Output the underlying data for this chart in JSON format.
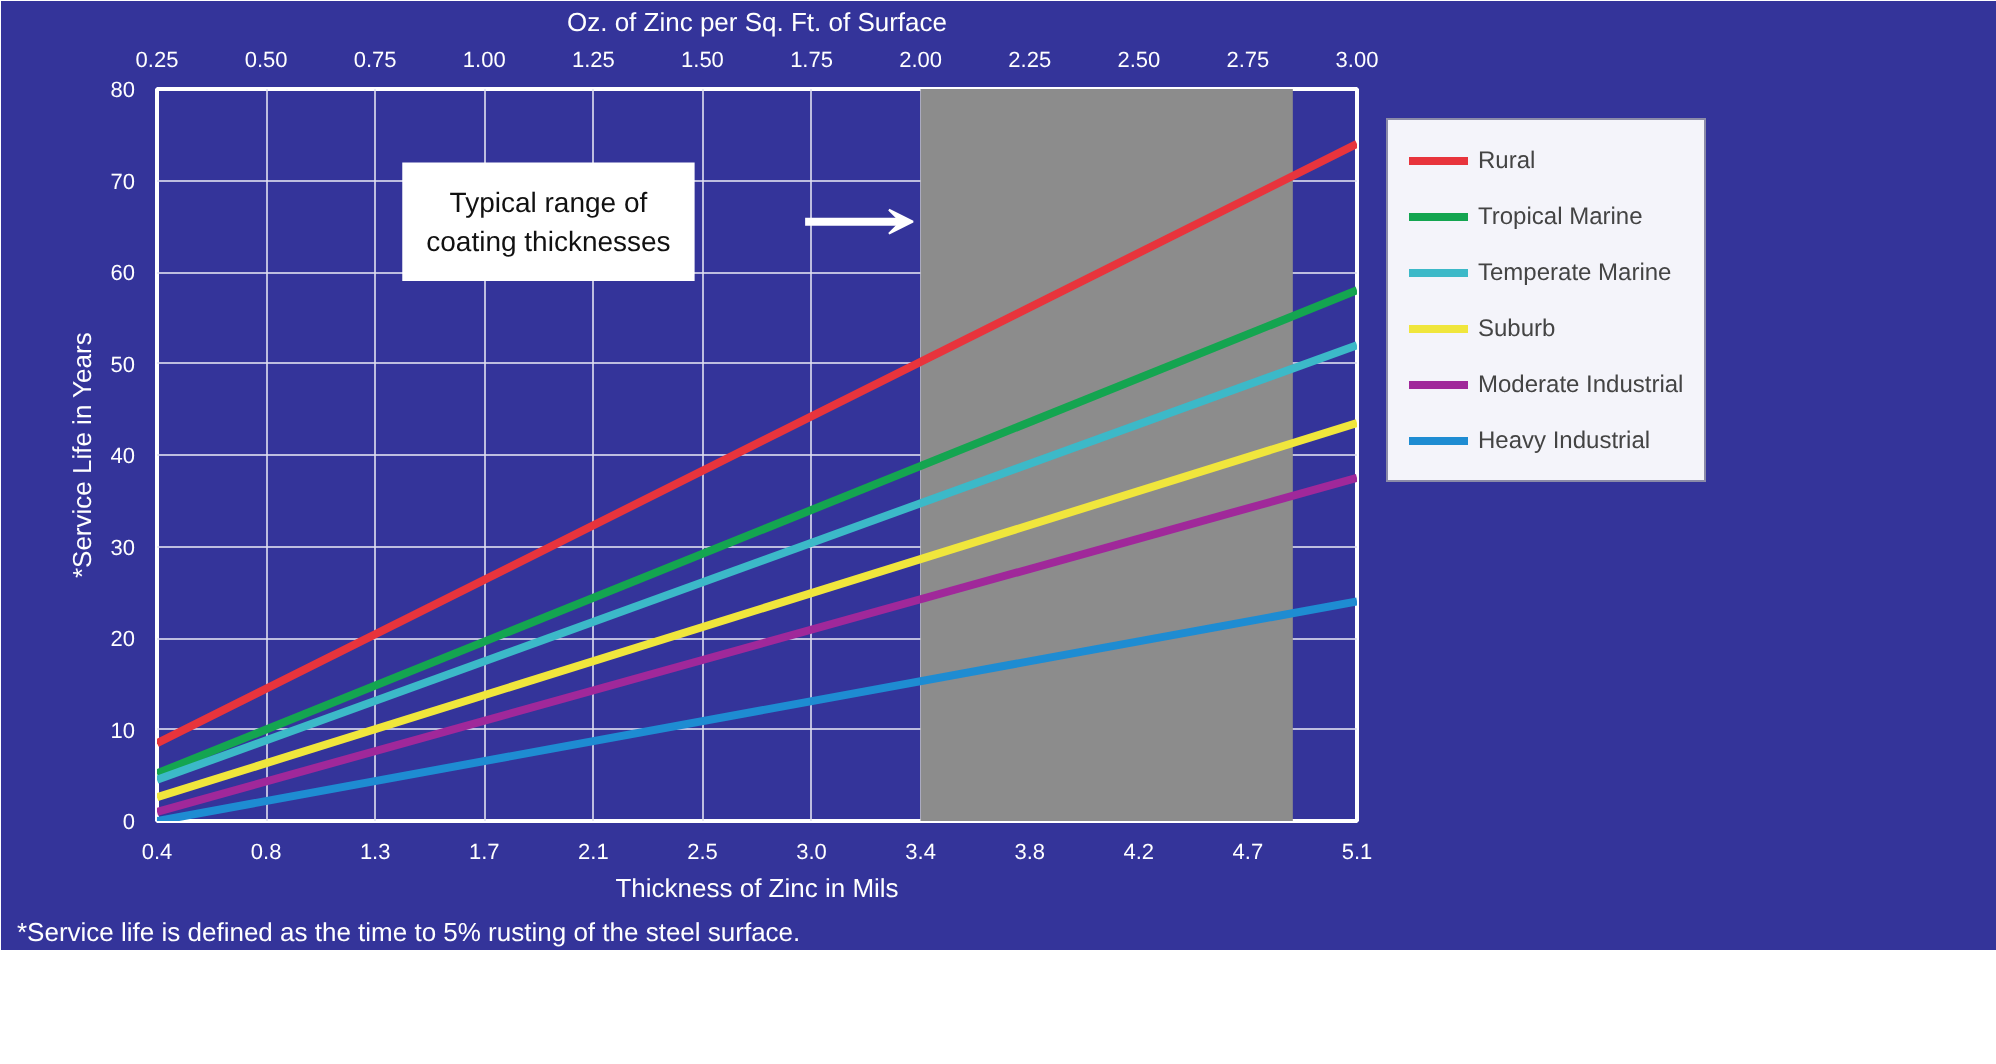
{
  "chart_data": {
    "type": "line",
    "xlabel": "Thickness of Zinc in Mils",
    "x2label": "Oz. of Zinc per Sq. Ft. of Surface",
    "ylabel": "*Service Life in Years",
    "x": [
      0.425,
      5.1
    ],
    "series": [
      {
        "name": "Rural",
        "color": "#e8343c",
        "values": [
          8.5,
          74
        ]
      },
      {
        "name": "Tropical Marine",
        "color": "#14a550",
        "values": [
          5.2,
          58
        ]
      },
      {
        "name": "Temperate Marine",
        "color": "#3cb9c8",
        "values": [
          4.5,
          52
        ]
      },
      {
        "name": "Suburb",
        "color": "#f0e63c",
        "values": [
          2.6,
          43.5
        ]
      },
      {
        "name": "Moderate Industrial",
        "color": "#a0289a",
        "values": [
          1,
          37.5
        ]
      },
      {
        "name": "Heavy Industrial",
        "color": "#1e8cd2",
        "values": [
          0,
          24
        ]
      }
    ],
    "xlim": [
      0.425,
      5.1
    ],
    "xticks": [
      {
        "value": 0.425,
        "label": "0.4"
      },
      {
        "value": 0.85,
        "label": "0.8"
      },
      {
        "value": 1.275,
        "label": "1.3"
      },
      {
        "value": 1.7,
        "label": "1.7"
      },
      {
        "value": 2.125,
        "label": "2.1"
      },
      {
        "value": 2.55,
        "label": "2.5"
      },
      {
        "value": 2.975,
        "label": "3.0"
      },
      {
        "value": 3.4,
        "label": "3.4"
      },
      {
        "value": 3.825,
        "label": "3.8"
      },
      {
        "value": 4.25,
        "label": "4.2"
      },
      {
        "value": 4.675,
        "label": "4.7"
      },
      {
        "value": 5.1,
        "label": "5.1"
      }
    ],
    "x2lim": [
      0.25,
      3.0
    ],
    "x2ticks": [
      {
        "value": 0.25,
        "label": "0.25"
      },
      {
        "value": 0.5,
        "label": "0.50"
      },
      {
        "value": 0.75,
        "label": "0.75"
      },
      {
        "value": 1.0,
        "label": "1.00"
      },
      {
        "value": 1.25,
        "label": "1.25"
      },
      {
        "value": 1.5,
        "label": "1.50"
      },
      {
        "value": 1.75,
        "label": "1.75"
      },
      {
        "value": 2.0,
        "label": "2.00"
      },
      {
        "value": 2.25,
        "label": "2.25"
      },
      {
        "value": 2.5,
        "label": "2.50"
      },
      {
        "value": 2.75,
        "label": "2.75"
      },
      {
        "value": 3.0,
        "label": "3.00"
      }
    ],
    "ylim": [
      0,
      80
    ],
    "yticks": [
      0,
      10,
      20,
      30,
      40,
      50,
      60,
      70,
      80
    ],
    "bands": [
      {
        "axis": "x",
        "from": 3.4,
        "to": 4.85,
        "color": "#8c8c8c"
      }
    ],
    "annotations": [
      "Typical range of coating thicknesses",
      "*Service life is defined as the time to 5% rusting of the steel surface."
    ],
    "grid": true,
    "legend": "right",
    "marker": "none",
    "line_style": "solid"
  }
}
